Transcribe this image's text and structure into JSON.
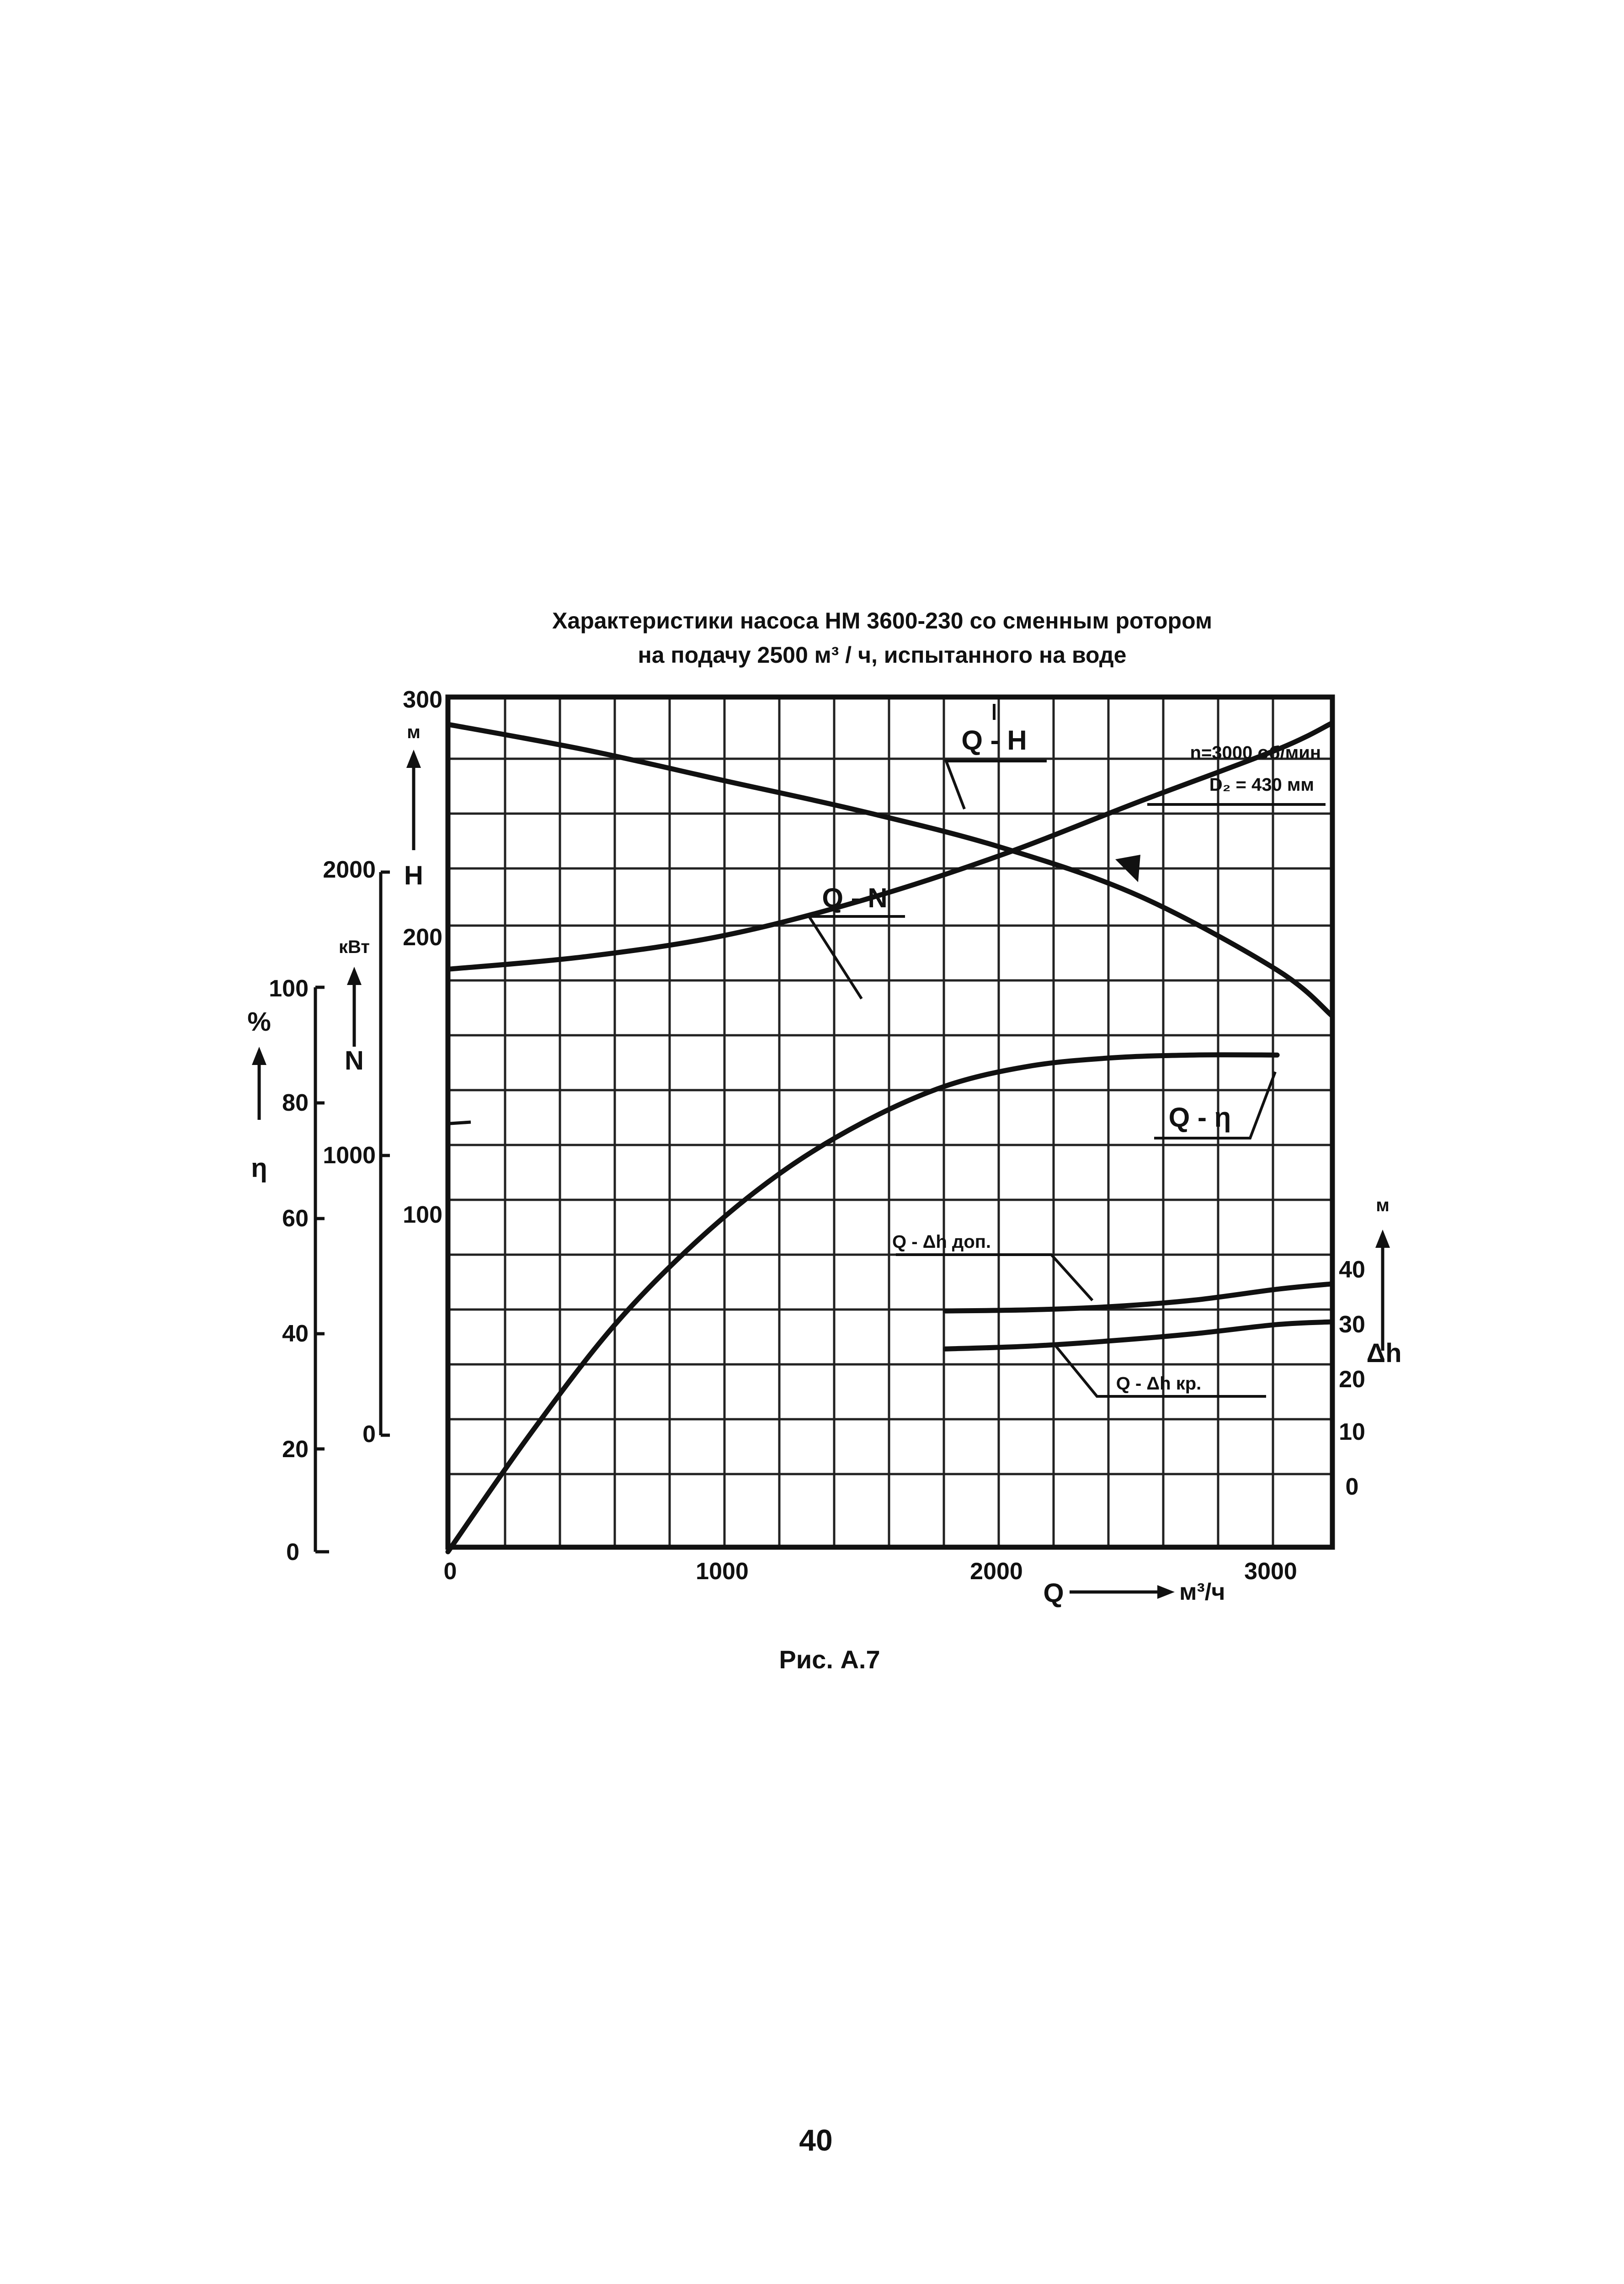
{
  "title_line1": "Характеристики насоса НМ  3600-230 со сменным ротором",
  "title_line2": "на подачу 2500 м³ / ч, испытанного на воде",
  "params_line1": "n=3000 об/мин",
  "params_line2": "D₂ = 430 мм",
  "caption": "Рис. А.7",
  "page_number": "40",
  "chart_data": {
    "type": "line",
    "x": {
      "label": "Q",
      "unit": "м³/ч",
      "ticks": [
        "0",
        "1000",
        "2000",
        "3000"
      ],
      "range": [
        0,
        3200
      ]
    },
    "axes": {
      "H": {
        "label": "H",
        "unit": "м",
        "ticks": [
          "300",
          "200",
          "100"
        ],
        "range": [
          0,
          300
        ]
      },
      "N": {
        "label": "N",
        "unit": "кВт",
        "ticks": [
          "2000",
          "1000",
          "0"
        ],
        "range": [
          0,
          2000
        ]
      },
      "eta": {
        "label": "η",
        "unit": "%",
        "ticks": [
          "100",
          "80",
          "60",
          "40",
          "20",
          "0"
        ],
        "range": [
          0,
          100
        ]
      },
      "dh": {
        "label": "Δh",
        "unit": "м",
        "ticks": [
          "40",
          "30",
          "20",
          "10",
          "0"
        ],
        "range": [
          0,
          40
        ]
      }
    },
    "grid": true,
    "series": [
      {
        "name": "Q - H",
        "axis": "H",
        "x": [
          0,
          500,
          1000,
          1500,
          2000,
          2500,
          3000,
          3200
        ],
        "y": [
          292,
          282,
          270,
          258,
          244,
          225,
          196,
          178
        ]
      },
      {
        "name": "Q - N",
        "axis": "N",
        "x": [
          0,
          500,
          1000,
          1500,
          2000,
          2500,
          3000,
          3200
        ],
        "y": [
          1655,
          1700,
          1775,
          1900,
          2060,
          2250,
          2435,
          2530
        ]
      },
      {
        "name": "Q - η",
        "axis": "eta",
        "x": [
          0,
          300,
          600,
          900,
          1200,
          1500,
          1800,
          2100,
          2400,
          2700,
          3000
        ],
        "y": [
          0,
          21,
          40,
          55,
          67,
          76,
          82.5,
          86,
          87.5,
          88,
          88
        ]
      },
      {
        "name": "Q - Δh доп.",
        "axis": "dh",
        "x": [
          1800,
          2100,
          2400,
          2700,
          3000,
          3200
        ],
        "y": [
          33,
          33.2,
          33.8,
          35,
          37,
          38
        ]
      },
      {
        "name": "Q - Δh кр.",
        "axis": "dh",
        "x": [
          1800,
          2100,
          2400,
          2700,
          3000,
          3200
        ],
        "y": [
          26,
          26.5,
          27.5,
          28.8,
          30.5,
          31
        ]
      }
    ]
  }
}
